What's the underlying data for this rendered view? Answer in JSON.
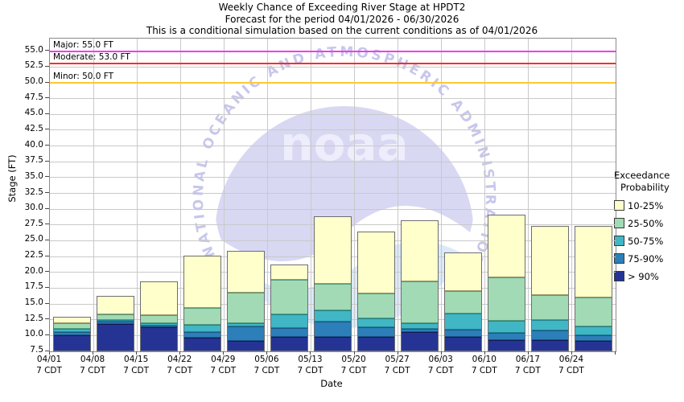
{
  "title": {
    "line1": "Weekly Chance of Exceeding River Stage at HPDT2",
    "line2": "Forecast for the period 04/01/2026 - 06/30/2026",
    "line3": "This is a conditional simulation based on the current conditions as of 04/01/2026"
  },
  "y_axis": {
    "label": "Stage (FT)",
    "ticks": [
      7.5,
      10.0,
      12.5,
      15.0,
      17.5,
      20.0,
      22.5,
      25.0,
      27.5,
      30.0,
      32.5,
      35.0,
      37.5,
      40.0,
      42.5,
      45.0,
      47.5,
      50.0,
      52.5,
      55.0
    ]
  },
  "x_axis": {
    "label": "Date",
    "tick_suffix": "7 CDT"
  },
  "thresholds": [
    {
      "name": "major",
      "label": "Major: 55.0 FT",
      "value": 55.0,
      "color": "#f03cf0"
    },
    {
      "name": "moderate",
      "label": "Moderate: 53.0 FT",
      "value": 53.0,
      "color": "#ff2a2a"
    },
    {
      "name": "minor",
      "label": "Minor: 50.0 FT",
      "value": 50.0,
      "color": "#ffc832"
    }
  ],
  "legend": {
    "title_line1": "Exceedance",
    "title_line2": "Probability"
  },
  "watermark": {
    "circle_text": "NATIONAL OCEANIC AND ATMOSPHERIC ADMINISTRATION",
    "wordmark": "noaa",
    "lavender": "#d8d8f3",
    "light_blue": "#dbe9f8",
    "text_color": "#c7c7ec"
  },
  "chart_data": {
    "type": "bar",
    "stacked": true,
    "title": "Weekly Chance of Exceeding River Stage at HPDT2",
    "xlabel": "Date",
    "ylabel": "Stage (FT)",
    "ylim": [
      7.5,
      57.0
    ],
    "baseline": 7.5,
    "grid": true,
    "legend_position": "right",
    "categories": [
      "04/01",
      "04/08",
      "04/15",
      "04/22",
      "04/29",
      "05/06",
      "05/13",
      "05/20",
      "05/27",
      "06/03",
      "06/10",
      "06/17",
      "06/24"
    ],
    "series": [
      {
        "name": "> 90%",
        "color": "#253494",
        "border": "#121a52",
        "tops": [
          10.0,
          11.8,
          11.3,
          9.6,
          9.2,
          9.8,
          9.8,
          9.8,
          10.6,
          9.8,
          9.3,
          9.3,
          9.2
        ]
      },
      {
        "name": "75-90%",
        "color": "#2c7fb8",
        "border": "#1b5687",
        "tops": [
          10.5,
          12.2,
          11.6,
          10.6,
          11.4,
          11.2,
          12.2,
          11.3,
          11.1,
          10.9,
          10.4,
          10.8,
          10.0
        ]
      },
      {
        "name": "50-75%",
        "color": "#41b6c4",
        "border": "#1f8391",
        "tops": [
          11.1,
          12.5,
          12.0,
          11.7,
          12.0,
          13.3,
          14.0,
          12.7,
          12.0,
          13.5,
          12.3,
          12.4,
          11.5
        ]
      },
      {
        "name": "25-50%",
        "color": "#a1dab4",
        "border": "#569b78",
        "tops": [
          12.0,
          13.3,
          13.2,
          14.4,
          16.8,
          18.8,
          18.2,
          16.6,
          18.6,
          17.0,
          19.2,
          16.4,
          16.0
        ]
      },
      {
        "name": "10-25%",
        "color": "#ffffcc",
        "border": "#9a9a68",
        "tops": [
          13.0,
          16.3,
          18.6,
          22.7,
          23.4,
          21.2,
          28.9,
          26.5,
          28.3,
          23.2,
          29.1,
          27.3,
          27.4
        ]
      }
    ]
  }
}
